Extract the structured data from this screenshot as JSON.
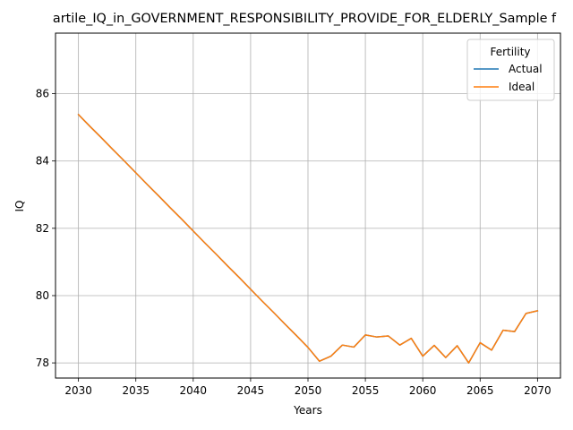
{
  "chart_data": {
    "type": "line",
    "title": "artile_IQ_in_GOVERNMENT_RESPONSIBILITY_PROVIDE_FOR_ELDERLY_Sample f",
    "xlabel": "Years",
    "ylabel": "IQ",
    "xlim": [
      2028,
      2072
    ],
    "ylim": [
      77.55,
      87.8
    ],
    "xticks": [
      2030,
      2035,
      2040,
      2045,
      2050,
      2055,
      2060,
      2065,
      2070
    ],
    "yticks": [
      78,
      80,
      82,
      84,
      86
    ],
    "grid": true,
    "legend": {
      "title": "Fertility",
      "placement": "top-right"
    },
    "series": [
      {
        "name": "Actual",
        "color": "#1f77b4",
        "x": [
          2030,
          2031,
          2032,
          2033,
          2034,
          2035,
          2036,
          2037,
          2038,
          2039,
          2040,
          2041,
          2042,
          2043,
          2044,
          2045,
          2046,
          2047,
          2048,
          2049,
          2050,
          2051,
          2052,
          2053,
          2054,
          2055,
          2056,
          2057,
          2058,
          2059,
          2060,
          2061,
          2062,
          2063,
          2064,
          2065,
          2066,
          2067,
          2068,
          2069,
          2070
        ],
        "values": [
          85.38,
          85.03,
          84.69,
          84.34,
          84.0,
          83.65,
          83.3,
          82.96,
          82.61,
          82.27,
          81.92,
          81.57,
          81.23,
          80.88,
          80.54,
          80.19,
          79.84,
          79.5,
          79.15,
          78.81,
          78.46,
          78.05,
          78.2,
          78.53,
          78.47,
          78.83,
          78.77,
          78.8,
          78.53,
          78.73,
          78.2,
          78.52,
          78.16,
          78.51,
          78.0,
          78.6,
          78.38,
          78.97,
          78.93,
          79.47,
          79.55
        ]
      },
      {
        "name": "Ideal",
        "color": "#ff7f0e",
        "x": [
          2030,
          2031,
          2032,
          2033,
          2034,
          2035,
          2036,
          2037,
          2038,
          2039,
          2040,
          2041,
          2042,
          2043,
          2044,
          2045,
          2046,
          2047,
          2048,
          2049,
          2050,
          2051,
          2052,
          2053,
          2054,
          2055,
          2056,
          2057,
          2058,
          2059,
          2060,
          2061,
          2062,
          2063,
          2064,
          2065,
          2066,
          2067,
          2068,
          2069,
          2070
        ],
        "values": [
          85.38,
          85.03,
          84.69,
          84.34,
          84.0,
          83.65,
          83.3,
          82.96,
          82.61,
          82.27,
          81.92,
          81.57,
          81.23,
          80.88,
          80.54,
          80.19,
          79.84,
          79.5,
          79.15,
          78.81,
          78.46,
          78.05,
          78.2,
          78.53,
          78.47,
          78.83,
          78.77,
          78.8,
          78.53,
          78.73,
          78.2,
          78.52,
          78.16,
          78.51,
          78.0,
          78.6,
          78.38,
          78.97,
          78.93,
          79.47,
          79.55
        ]
      }
    ]
  }
}
